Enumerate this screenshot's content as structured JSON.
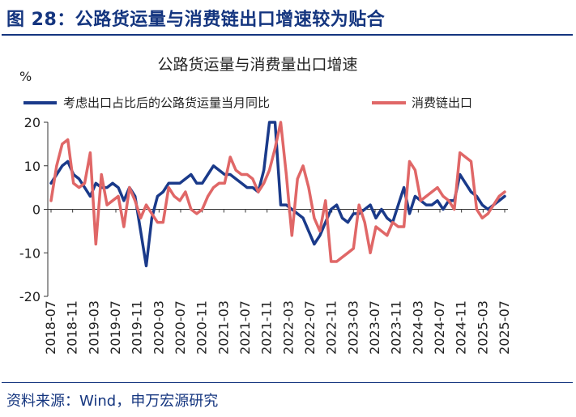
{
  "figure_title": "图 28：公路货运量与消费链出口增速较为贴合",
  "source": "资料来源：Wind，申万宏源研究",
  "colors": {
    "title": "#14357f",
    "series1": "#1a3a8a",
    "series2": "#e06767",
    "axis": "#333333"
  },
  "chart_data": {
    "type": "line",
    "title": "公路货运量与消费量出口增速",
    "ylabel": "%",
    "ylim": [
      -20,
      20
    ],
    "yticks": [
      20,
      10,
      0,
      -10,
      -20
    ],
    "xlabels": [
      "2018-07",
      "2018-11",
      "2019-03",
      "2019-07",
      "2019-11",
      "2020-03",
      "2020-07",
      "2020-11",
      "2021-03",
      "2021-07",
      "2021-11",
      "2022-03",
      "2022-07",
      "2022-11",
      "2023-03",
      "2023-07",
      "2023-11",
      "2024-03",
      "2024-07",
      "2024-11",
      "2025-03",
      "2025-07"
    ],
    "x_start": "2018-07",
    "x_end": "2025-07",
    "legend_position": "top",
    "series": [
      {
        "name": "考虑出口占比后的公路货运量当月同比",
        "color": "#1a3a8a",
        "values": [
          6,
          8,
          10,
          11,
          8,
          7,
          5,
          3,
          6,
          5,
          5,
          6,
          5,
          2,
          5,
          3,
          -5,
          -13,
          -2,
          3,
          4,
          6,
          6,
          6,
          7,
          8,
          6,
          6,
          8,
          10,
          9,
          8,
          8,
          7,
          6,
          5,
          5,
          4,
          9,
          20,
          20,
          1,
          1,
          0,
          -1,
          -2,
          -5,
          -8,
          -6,
          -3,
          0,
          1,
          -2,
          -3,
          -1,
          -1,
          0,
          1,
          -2,
          0,
          -2,
          -3,
          1,
          5,
          -1,
          3,
          2,
          1,
          1,
          2,
          0,
          2,
          2,
          8,
          6,
          4,
          3,
          1,
          0,
          1,
          2,
          3
        ],
        "__note_skip": true
      },
      {
        "name": "消费链出口",
        "color": "#e06767",
        "values": [
          2,
          10,
          15,
          16,
          6,
          5,
          6,
          13,
          -8,
          8,
          1,
          2,
          3,
          -4,
          5,
          2,
          -2,
          1,
          -1,
          -3,
          -3,
          5,
          3,
          2,
          4,
          0,
          -1,
          0,
          3,
          5,
          6,
          6,
          12,
          9,
          8,
          8,
          7,
          4,
          6,
          9,
          14,
          20,
          8,
          -6,
          7,
          10,
          5,
          -2,
          -5,
          2,
          -12,
          -12,
          -11,
          -10,
          -9,
          1,
          -3,
          -10,
          -4,
          -5,
          -6,
          -3,
          -4,
          -4,
          11,
          9,
          2,
          3,
          4,
          5,
          3,
          2,
          0,
          13,
          12,
          11,
          0,
          -2,
          -1,
          1,
          3,
          4
        ],
        "__note_skip2": true
      }
    ]
  }
}
